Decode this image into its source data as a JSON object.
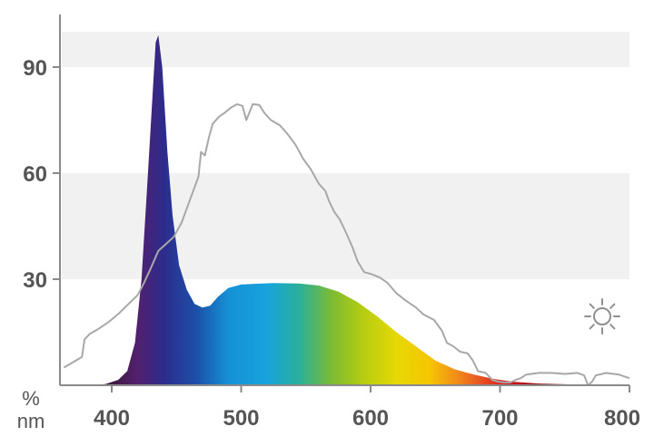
{
  "chart_data": {
    "type": "area",
    "title": "",
    "xlabel": "nm",
    "ylabel": "%",
    "xlim": [
      360,
      800
    ],
    "ylim": [
      0,
      100
    ],
    "x_ticks": [
      "400",
      "500",
      "600",
      "700",
      "800"
    ],
    "y_ticks": [
      "30",
      "60",
      "90"
    ],
    "grid_bands": [
      [
        30,
        60
      ],
      [
        90,
        100
      ]
    ],
    "series": [
      {
        "name": "",
        "kind": "filled-spectrum",
        "points": [
          [
            380,
            0
          ],
          [
            395,
            0.3
          ],
          [
            405,
            1.5
          ],
          [
            412,
            4
          ],
          [
            418,
            12
          ],
          [
            423,
            30
          ],
          [
            428,
            60
          ],
          [
            432,
            85
          ],
          [
            434,
            97
          ],
          [
            436,
            99
          ],
          [
            439,
            90
          ],
          [
            443,
            66
          ],
          [
            447,
            48
          ],
          [
            452,
            34
          ],
          [
            458,
            27
          ],
          [
            464,
            23
          ],
          [
            470,
            22
          ],
          [
            476,
            22.5
          ],
          [
            482,
            25
          ],
          [
            490,
            27.5
          ],
          [
            500,
            28.5
          ],
          [
            510,
            28.7
          ],
          [
            525,
            28.9
          ],
          [
            545,
            28.8
          ],
          [
            560,
            28.2
          ],
          [
            575,
            26.5
          ],
          [
            590,
            23.5
          ],
          [
            605,
            19.5
          ],
          [
            620,
            15
          ],
          [
            635,
            11
          ],
          [
            650,
            7
          ],
          [
            665,
            4.5
          ],
          [
            680,
            3
          ],
          [
            695,
            1.8
          ],
          [
            710,
            1
          ],
          [
            730,
            0.5
          ],
          [
            760,
            0.2
          ],
          [
            800,
            0
          ]
        ],
        "gradient": [
          [
            400,
            "#3d1a3d"
          ],
          [
            420,
            "#52206e"
          ],
          [
            440,
            "#2d2b8c"
          ],
          [
            465,
            "#1c4fa8"
          ],
          [
            490,
            "#1590d6"
          ],
          [
            520,
            "#17a3dc"
          ],
          [
            545,
            "#2ab09a"
          ],
          [
            570,
            "#7cbb33"
          ],
          [
            595,
            "#b7cd10"
          ],
          [
            620,
            "#e6d805"
          ],
          [
            645,
            "#f6c600"
          ],
          [
            665,
            "#f29118"
          ],
          [
            685,
            "#e85323"
          ],
          [
            705,
            "#d8181c"
          ],
          [
            725,
            "#a01018"
          ],
          [
            760,
            "#7a0f12"
          ],
          [
            800,
            "#6a0f10"
          ]
        ]
      },
      {
        "name": "",
        "kind": "line",
        "color": "#a8a8a8",
        "points": [
          [
            363,
            5
          ],
          [
            370,
            6.5
          ],
          [
            377,
            8
          ],
          [
            379,
            13
          ],
          [
            383,
            14.5
          ],
          [
            390,
            16
          ],
          [
            398,
            18
          ],
          [
            406,
            20.5
          ],
          [
            413,
            23
          ],
          [
            420,
            25.5
          ],
          [
            425,
            29
          ],
          [
            430,
            33
          ],
          [
            436,
            38
          ],
          [
            442,
            40
          ],
          [
            448,
            42
          ],
          [
            454,
            46
          ],
          [
            461,
            53
          ],
          [
            467,
            59
          ],
          [
            469,
            66
          ],
          [
            472,
            65
          ],
          [
            475,
            70
          ],
          [
            478,
            74
          ],
          [
            483,
            76
          ],
          [
            487,
            77
          ],
          [
            492,
            78.5
          ],
          [
            497,
            79.5
          ],
          [
            501,
            79
          ],
          [
            504,
            75
          ],
          [
            509,
            79.5
          ],
          [
            514,
            79.3
          ],
          [
            518,
            77
          ],
          [
            523,
            75
          ],
          [
            530,
            73.5
          ],
          [
            536,
            71
          ],
          [
            542,
            68
          ],
          [
            548,
            64
          ],
          [
            554,
            61
          ],
          [
            560,
            57
          ],
          [
            565,
            55
          ],
          [
            568,
            52
          ],
          [
            572,
            49
          ],
          [
            576,
            47
          ],
          [
            580,
            44
          ],
          [
            586,
            39
          ],
          [
            590,
            35
          ],
          [
            595,
            32
          ],
          [
            600,
            31.5
          ],
          [
            607,
            30.5
          ],
          [
            613,
            29
          ],
          [
            620,
            26
          ],
          [
            627,
            24
          ],
          [
            635,
            22
          ],
          [
            641,
            20
          ],
          [
            649,
            18.5
          ],
          [
            655,
            15.5
          ],
          [
            659,
            12
          ],
          [
            664,
            11
          ],
          [
            669,
            9.5
          ],
          [
            675,
            9
          ],
          [
            679,
            7
          ],
          [
            683,
            4
          ],
          [
            689,
            3.5
          ],
          [
            694,
            1.5
          ],
          [
            699,
            1
          ],
          [
            703,
            0.8
          ],
          [
            708,
            0.8
          ],
          [
            712,
            1.5
          ],
          [
            716,
            2
          ],
          [
            720,
            3
          ],
          [
            730,
            3.5
          ],
          [
            740,
            3.5
          ],
          [
            750,
            3.2
          ],
          [
            760,
            3.5
          ],
          [
            765,
            2.8
          ],
          [
            768,
            0
          ],
          [
            771,
            1
          ],
          [
            774,
            2.8
          ],
          [
            782,
            3.5
          ],
          [
            792,
            3
          ],
          [
            800,
            2
          ]
        ]
      }
    ],
    "icon": "sun-icon"
  }
}
